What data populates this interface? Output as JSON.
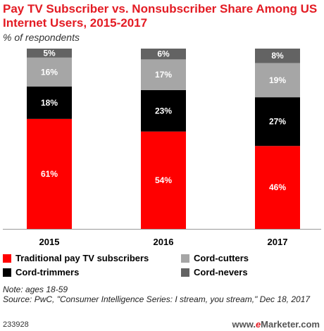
{
  "header": {
    "title": "Pay TV Subscriber vs. Nonsubscriber Share Among US Internet Users, 2015-2017",
    "subtitle": "% of respondents"
  },
  "footer": {
    "note": "Note: ages 18-59",
    "source": "Source: PwC, \"Consumer Intelligence Series: I stream, you stream,\" Dec 18, 2017",
    "chart_id": "233928",
    "brand_prefix": "www.",
    "brand_e": "e",
    "brand_rest": "Marketer.com"
  },
  "chart_data": {
    "type": "bar",
    "stacked": true,
    "categories": [
      "2015",
      "2016",
      "2017"
    ],
    "series": [
      {
        "name": "Traditional pay TV subscribers",
        "values": [
          61,
          54,
          46
        ],
        "color": "#ff0000",
        "label_color": "#ffffff"
      },
      {
        "name": "Cord-trimmers",
        "values": [
          18,
          23,
          27
        ],
        "color": "#000000",
        "label_color": "#ffffff"
      },
      {
        "name": "Cord-cutters",
        "values": [
          16,
          17,
          19
        ],
        "color": "#a6a6a6",
        "label_color": "#ffffff"
      },
      {
        "name": "Cord-nevers",
        "values": [
          5,
          6,
          8
        ],
        "color": "#636363",
        "label_color": "#ffffff"
      }
    ],
    "value_suffix": "%",
    "ylim": [
      0,
      100
    ],
    "grid": false,
    "legend_position": "bottom"
  }
}
